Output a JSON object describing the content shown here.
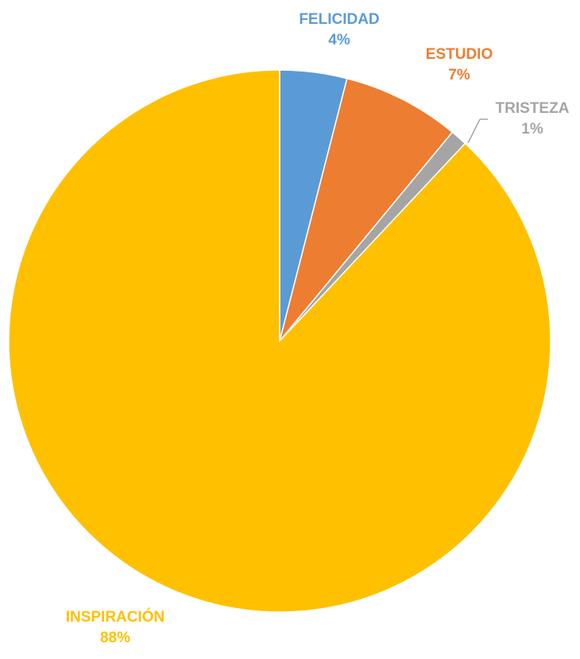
{
  "chart_data": {
    "type": "pie",
    "title": "",
    "slices": [
      {
        "label": "FELICIDAD",
        "value": 4,
        "display": "4%",
        "color": "#5B9BD5"
      },
      {
        "label": "ESTUDIO",
        "value": 7,
        "display": "7%",
        "color": "#ED7D31"
      },
      {
        "label": "TRISTEZA",
        "value": 1,
        "display": "1%",
        "color": "#A5A5A5"
      },
      {
        "label": "INSPIRACIÓN",
        "value": 88,
        "display": "88%",
        "color": "#FFC000"
      }
    ],
    "legend": "none",
    "data_labels": "outside"
  }
}
